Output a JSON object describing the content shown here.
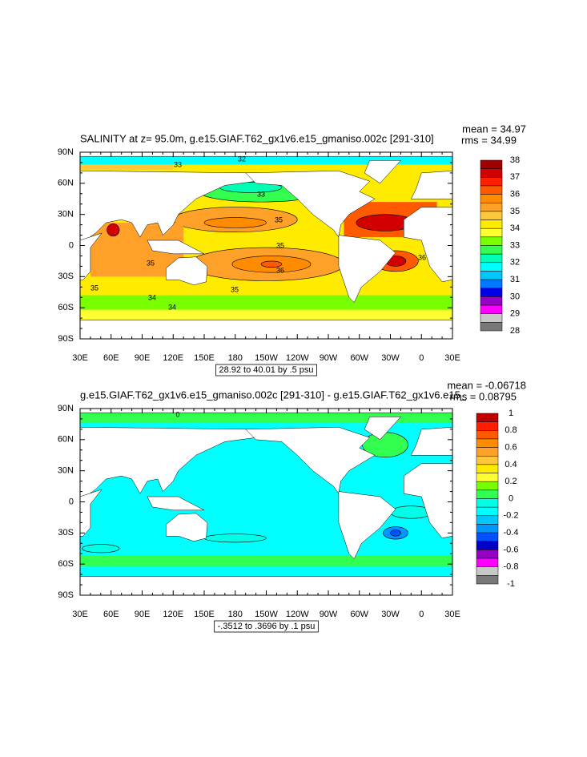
{
  "panels": [
    {
      "title": "SALINITY at z=   95.0m, g.e15.GIAF.T62_gx1v6.e15_gmaniso.002c [291-310]",
      "mean": "mean = 34.97",
      "rms": "rms = 34.99",
      "contour_info": "28.92 to 40.01 by .5 psu",
      "contour_labels": [
        "33",
        "32",
        "33",
        "35",
        "35",
        "35",
        "36",
        "35",
        "35",
        "34",
        "34",
        "36"
      ],
      "colorbar": {
        "labels": [
          "38",
          "37",
          "36",
          "35",
          "34",
          "33",
          "32",
          "31",
          "30",
          "29",
          "28"
        ],
        "colors": [
          "#a00000",
          "#d20000",
          "#ff1e00",
          "#ff5a00",
          "#ff8c00",
          "#ffa028",
          "#ffc83c",
          "#ffeb00",
          "#ffff32",
          "#78ff00",
          "#32ff50",
          "#00ffb4",
          "#00ffff",
          "#00c8ff",
          "#0078ff",
          "#0000e6",
          "#9600c8",
          "#ff00ff",
          "#c8c8c8",
          "#787878"
        ]
      }
    },
    {
      "title": "g.e15.GIAF.T62_gx1v6.e15_gmaniso.002c [291-310] - g.e15.GIAF.T62_gx1v6.e15_",
      "mean": "mean = -0.06718",
      "rms": "rms = 0.08795",
      "contour_info": "-.3512 to .3696 by .1 psu",
      "contour_labels": [
        "0"
      ],
      "colorbar": {
        "labels": [
          "1",
          "0.8",
          "0.6",
          "0.4",
          "0.2",
          "0",
          "-0.2",
          "-0.4",
          "-0.6",
          "-0.8",
          "-1"
        ],
        "colors": [
          "#c00000",
          "#ff1e00",
          "#ff5a00",
          "#ff8c00",
          "#ffa028",
          "#ffc83c",
          "#ffeb00",
          "#ffff32",
          "#78ff00",
          "#32ff50",
          "#00ffe6",
          "#00ffff",
          "#00c8ff",
          "#0096ff",
          "#0050ff",
          "#0000c8",
          "#9600c8",
          "#ff00ff",
          "#c8c8c8",
          "#787878"
        ]
      }
    }
  ],
  "lat_labels": [
    "90N",
    "60N",
    "30N",
    "0",
    "30S",
    "60S",
    "90S"
  ],
  "lon_labels": [
    "30E",
    "60E",
    "90E",
    "120E",
    "150E",
    "180",
    "150W",
    "120W",
    "90W",
    "60W",
    "30W",
    "0",
    "30E"
  ]
}
